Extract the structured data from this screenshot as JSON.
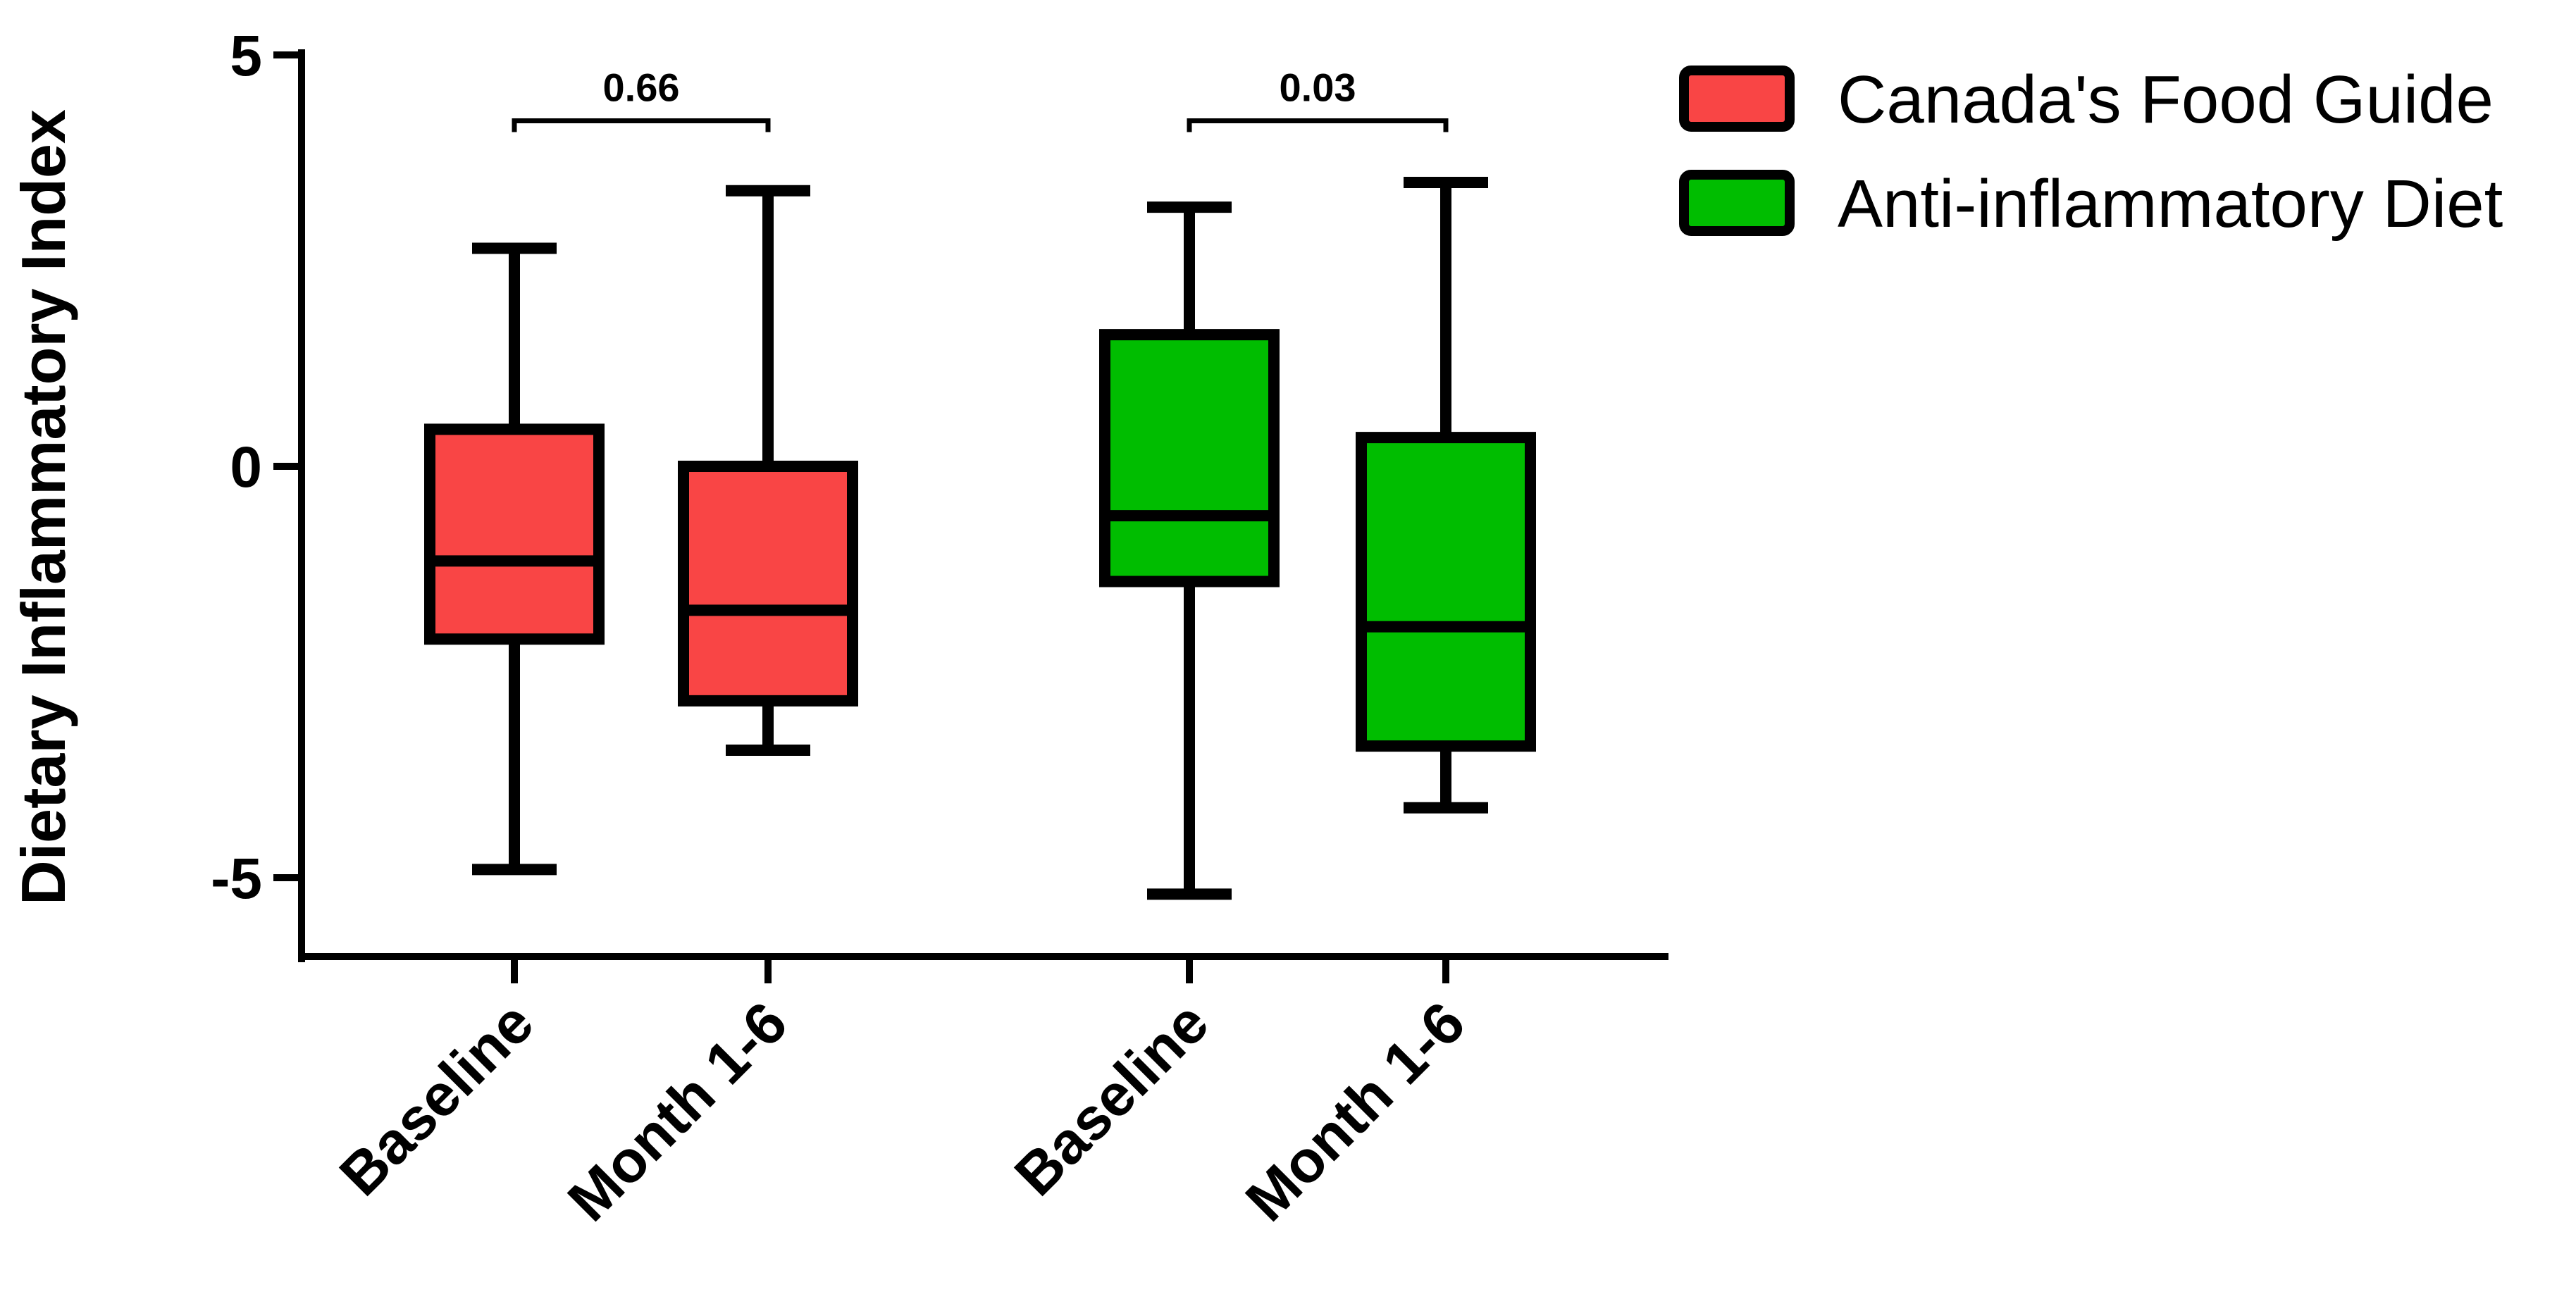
{
  "chart_data": {
    "type": "box",
    "title": "",
    "ylabel": "Dietary Inflammatory Index",
    "xlabel": "",
    "ylim": [
      -6,
      5
    ],
    "yticks": [
      5,
      0,
      -5
    ],
    "ytick_labels": [
      "5",
      "0",
      "-5"
    ],
    "categories": [
      "Baseline",
      "Month 1-6",
      "Baseline",
      "Month 1-6"
    ],
    "series": [
      {
        "name": "Canada's Food Guide",
        "color": "#F94545",
        "boxes": [
          {
            "category": "Baseline",
            "min": -4.9,
            "q1": -2.1,
            "median": -1.15,
            "q3": 0.45,
            "max": 2.65
          },
          {
            "category": "Month 1-6",
            "min": -3.45,
            "q1": -2.85,
            "median": -1.75,
            "q3": 0.0,
            "max": 3.35
          }
        ]
      },
      {
        "name": "Anti-inflammatory Diet",
        "color": "#00BD00",
        "boxes": [
          {
            "category": "Baseline",
            "min": -5.2,
            "q1": -1.4,
            "median": -0.6,
            "q3": 1.6,
            "max": 3.15
          },
          {
            "category": "Month 1-6",
            "min": -4.15,
            "q1": -3.4,
            "median": -1.95,
            "q3": 0.35,
            "max": 3.45
          }
        ]
      }
    ],
    "annotations": [
      {
        "group": "Canada's Food Guide",
        "text": "0.66",
        "y": 4.2
      },
      {
        "group": "Anti-inflammatory Diet",
        "text": "0.03",
        "y": 4.2
      }
    ],
    "legend": {
      "position": "top-right",
      "entries": [
        "Canada's Food Guide",
        "Anti-inflammatory Diet"
      ]
    }
  }
}
